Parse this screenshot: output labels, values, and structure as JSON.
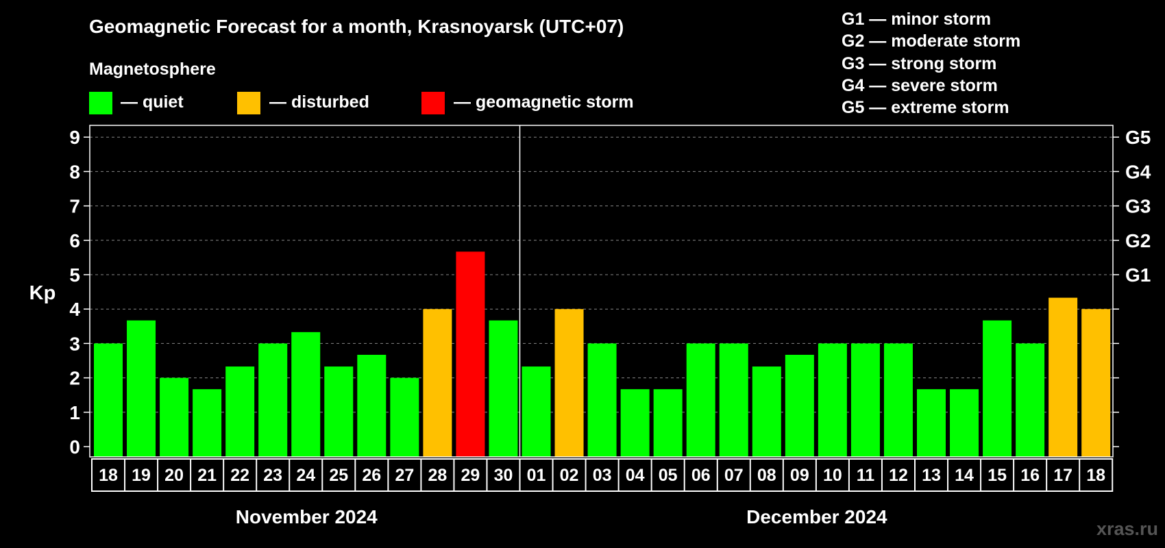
{
  "title": "Geomagnetic Forecast for a month, Krasnoyarsk (UTC+07)",
  "legend": {
    "heading": "Magnetosphere",
    "items": [
      {
        "label": "— quiet",
        "color": "#00ff00"
      },
      {
        "label": "— disturbed",
        "color": "#ffc000"
      },
      {
        "label": "— geomagnetic storm",
        "color": "#ff0000"
      }
    ]
  },
  "storm_scale": [
    "G1 — minor storm",
    "G2 — moderate storm",
    "G3 — strong storm",
    "G4 — severe storm",
    "G5 — extreme storm"
  ],
  "watermark": "xras.ru",
  "chart_data": {
    "type": "bar",
    "title": "Geomagnetic Forecast for a month, Krasnoyarsk (UTC+07)",
    "ylabel": "Kp",
    "xlabel": "",
    "ylim": [
      0,
      9
    ],
    "yticks": [
      "0",
      "1",
      "2",
      "3",
      "4",
      "5",
      "6",
      "7",
      "8",
      "9"
    ],
    "right_axis_labels": [
      {
        "value": 5,
        "label": "G1"
      },
      {
        "value": 6,
        "label": "G2"
      },
      {
        "value": 7,
        "label": "G3"
      },
      {
        "value": 8,
        "label": "G4"
      },
      {
        "value": 9,
        "label": "G5"
      }
    ],
    "months": [
      {
        "label": "November 2024",
        "count": 13
      },
      {
        "label": "December 2024",
        "count": 18
      }
    ],
    "categories": [
      "18",
      "19",
      "20",
      "21",
      "22",
      "23",
      "24",
      "25",
      "26",
      "27",
      "28",
      "29",
      "30",
      "01",
      "02",
      "03",
      "04",
      "05",
      "06",
      "07",
      "08",
      "09",
      "10",
      "11",
      "12",
      "13",
      "14",
      "15",
      "16",
      "17",
      "18"
    ],
    "values": [
      3.0,
      3.67,
      2.0,
      1.67,
      2.33,
      3.0,
      3.33,
      2.33,
      2.67,
      2.0,
      4.0,
      5.67,
      3.67,
      2.33,
      4.0,
      3.0,
      1.67,
      1.67,
      3.0,
      3.0,
      2.33,
      2.67,
      3.0,
      3.0,
      3.0,
      1.67,
      1.67,
      3.67,
      3.0,
      4.33,
      4.0
    ],
    "status": [
      "quiet",
      "quiet",
      "quiet",
      "quiet",
      "quiet",
      "quiet",
      "quiet",
      "quiet",
      "quiet",
      "quiet",
      "disturbed",
      "storm",
      "quiet",
      "quiet",
      "disturbed",
      "quiet",
      "quiet",
      "quiet",
      "quiet",
      "quiet",
      "quiet",
      "quiet",
      "quiet",
      "quiet",
      "quiet",
      "quiet",
      "quiet",
      "quiet",
      "quiet",
      "disturbed",
      "disturbed"
    ],
    "colors": {
      "quiet": "#00ff00",
      "disturbed": "#ffc000",
      "storm": "#ff0000",
      "grid": "#888888",
      "axis": "#ffffff"
    }
  }
}
